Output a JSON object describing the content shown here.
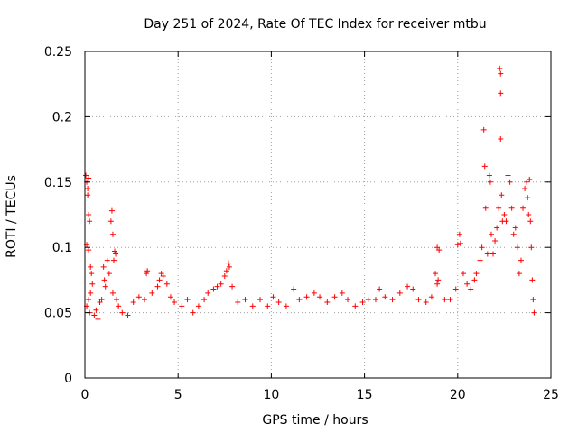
{
  "chart_data": {
    "type": "scatter",
    "title": "Day 251 of 2024, Rate Of TEC Index for receiver mtbu",
    "xlabel": "GPS time / hours",
    "ylabel": "ROTI / TECUs",
    "xlim": [
      0,
      25
    ],
    "ylim": [
      0,
      0.25
    ],
    "xticks": [
      0,
      5,
      10,
      15,
      20,
      25
    ],
    "yticks": [
      0,
      0.05,
      0.1,
      0.15,
      0.2,
      0.25
    ],
    "xtick_labels": [
      "0",
      "5",
      "10",
      "15",
      "20",
      "25"
    ],
    "ytick_labels": [
      "0",
      "0.05",
      "0.1",
      "0.15",
      "0.2",
      "0.25"
    ],
    "grid": true,
    "marker": "+",
    "color": "#ff0000",
    "series": [
      {
        "name": "ROTI",
        "points": [
          [
            0.05,
            0.155
          ],
          [
            0.1,
            0.15
          ],
          [
            0.15,
            0.145
          ],
          [
            0.2,
            0.153
          ],
          [
            0.15,
            0.14
          ],
          [
            0.2,
            0.125
          ],
          [
            0.25,
            0.12
          ],
          [
            0.1,
            0.102
          ],
          [
            0.2,
            0.098
          ],
          [
            0.3,
            0.085
          ],
          [
            0.35,
            0.08
          ],
          [
            0.4,
            0.072
          ],
          [
            0.3,
            0.065
          ],
          [
            0.2,
            0.06
          ],
          [
            0.1,
            0.055
          ],
          [
            0.25,
            0.05
          ],
          [
            0.5,
            0.048
          ],
          [
            0.6,
            0.052
          ],
          [
            0.7,
            0.045
          ],
          [
            0.8,
            0.058
          ],
          [
            0.9,
            0.06
          ],
          [
            1.0,
            0.085
          ],
          [
            1.05,
            0.075
          ],
          [
            1.1,
            0.07
          ],
          [
            1.2,
            0.09
          ],
          [
            1.3,
            0.08
          ],
          [
            1.4,
            0.12
          ],
          [
            1.45,
            0.128
          ],
          [
            1.5,
            0.11
          ],
          [
            1.55,
            0.09
          ],
          [
            1.6,
            0.097
          ],
          [
            1.65,
            0.095
          ],
          [
            1.5,
            0.065
          ],
          [
            1.7,
            0.06
          ],
          [
            1.8,
            0.055
          ],
          [
            2.0,
            0.05
          ],
          [
            2.3,
            0.048
          ],
          [
            2.6,
            0.058
          ],
          [
            2.9,
            0.062
          ],
          [
            3.2,
            0.06
          ],
          [
            3.3,
            0.08
          ],
          [
            3.35,
            0.082
          ],
          [
            3.6,
            0.065
          ],
          [
            3.9,
            0.07
          ],
          [
            4.0,
            0.075
          ],
          [
            4.1,
            0.08
          ],
          [
            4.2,
            0.078
          ],
          [
            4.4,
            0.072
          ],
          [
            4.6,
            0.062
          ],
          [
            4.8,
            0.058
          ],
          [
            5.2,
            0.055
          ],
          [
            5.5,
            0.06
          ],
          [
            5.8,
            0.05
          ],
          [
            6.1,
            0.055
          ],
          [
            6.4,
            0.06
          ],
          [
            6.6,
            0.065
          ],
          [
            6.9,
            0.068
          ],
          [
            7.1,
            0.07
          ],
          [
            7.3,
            0.072
          ],
          [
            7.5,
            0.078
          ],
          [
            7.6,
            0.082
          ],
          [
            7.7,
            0.088
          ],
          [
            7.75,
            0.085
          ],
          [
            7.9,
            0.07
          ],
          [
            8.2,
            0.058
          ],
          [
            8.6,
            0.06
          ],
          [
            9.0,
            0.055
          ],
          [
            9.4,
            0.06
          ],
          [
            9.8,
            0.055
          ],
          [
            10.1,
            0.062
          ],
          [
            10.4,
            0.058
          ],
          [
            10.8,
            0.055
          ],
          [
            11.2,
            0.068
          ],
          [
            11.5,
            0.06
          ],
          [
            11.9,
            0.062
          ],
          [
            12.3,
            0.065
          ],
          [
            12.6,
            0.062
          ],
          [
            13.0,
            0.058
          ],
          [
            13.4,
            0.062
          ],
          [
            13.8,
            0.065
          ],
          [
            14.1,
            0.06
          ],
          [
            14.5,
            0.055
          ],
          [
            14.9,
            0.058
          ],
          [
            15.2,
            0.06
          ],
          [
            15.6,
            0.06
          ],
          [
            15.8,
            0.068
          ],
          [
            16.1,
            0.062
          ],
          [
            16.5,
            0.06
          ],
          [
            16.9,
            0.065
          ],
          [
            17.3,
            0.07
          ],
          [
            17.6,
            0.068
          ],
          [
            17.9,
            0.06
          ],
          [
            18.3,
            0.058
          ],
          [
            18.6,
            0.062
          ],
          [
            18.8,
            0.08
          ],
          [
            18.9,
            0.1
          ],
          [
            19.0,
            0.098
          ],
          [
            18.95,
            0.075
          ],
          [
            18.9,
            0.072
          ],
          [
            19.3,
            0.06
          ],
          [
            19.6,
            0.06
          ],
          [
            19.9,
            0.068
          ],
          [
            20.0,
            0.102
          ],
          [
            20.1,
            0.11
          ],
          [
            20.15,
            0.103
          ],
          [
            20.3,
            0.08
          ],
          [
            20.5,
            0.072
          ],
          [
            20.7,
            0.068
          ],
          [
            20.9,
            0.075
          ],
          [
            21.0,
            0.08
          ],
          [
            21.2,
            0.09
          ],
          [
            21.3,
            0.1
          ],
          [
            21.4,
            0.19
          ],
          [
            21.45,
            0.162
          ],
          [
            21.5,
            0.13
          ],
          [
            21.6,
            0.095
          ],
          [
            21.7,
            0.155
          ],
          [
            21.75,
            0.15
          ],
          [
            21.8,
            0.11
          ],
          [
            21.9,
            0.095
          ],
          [
            22.0,
            0.105
          ],
          [
            22.1,
            0.115
          ],
          [
            22.2,
            0.13
          ],
          [
            22.25,
            0.237
          ],
          [
            22.3,
            0.233
          ],
          [
            22.3,
            0.218
          ],
          [
            22.3,
            0.183
          ],
          [
            22.35,
            0.14
          ],
          [
            22.4,
            0.12
          ],
          [
            22.5,
            0.125
          ],
          [
            22.6,
            0.12
          ],
          [
            22.7,
            0.155
          ],
          [
            22.8,
            0.15
          ],
          [
            22.9,
            0.13
          ],
          [
            23.0,
            0.11
          ],
          [
            23.1,
            0.115
          ],
          [
            23.2,
            0.1
          ],
          [
            23.3,
            0.08
          ],
          [
            23.4,
            0.09
          ],
          [
            23.5,
            0.13
          ],
          [
            23.6,
            0.145
          ],
          [
            23.7,
            0.15
          ],
          [
            23.75,
            0.138
          ],
          [
            23.8,
            0.125
          ],
          [
            23.85,
            0.152
          ],
          [
            23.9,
            0.12
          ],
          [
            23.95,
            0.1
          ],
          [
            24.0,
            0.075
          ],
          [
            24.05,
            0.06
          ],
          [
            24.1,
            0.05
          ]
        ]
      }
    ]
  }
}
